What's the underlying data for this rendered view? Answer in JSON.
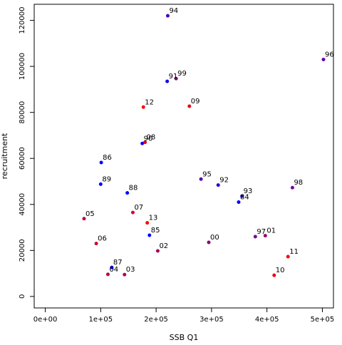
{
  "chart_data": {
    "type": "scatter",
    "xlabel": "SSB Q1",
    "ylabel": "recruitment",
    "xlim": [
      -20000,
      520000
    ],
    "ylim": [
      -5000,
      127000
    ],
    "x_ticks": [
      0,
      100000,
      200000,
      300000,
      400000,
      500000
    ],
    "x_tick_labels": [
      "0e+00",
      "1e+05",
      "2e+05",
      "3e+05",
      "4e+05",
      "5e+05"
    ],
    "y_ticks": [
      0,
      20000,
      40000,
      60000,
      80000,
      100000,
      120000
    ],
    "y_tick_labels": [
      "0",
      "20000",
      "40000",
      "60000",
      "80000",
      "100000",
      "120000"
    ],
    "point_colors": {
      "blue": "#0000ff",
      "purple": "#6600cc",
      "red": "#ff0000",
      "darkred": "#cc0033"
    },
    "points": [
      {
        "label": "85",
        "x": 188000,
        "y": 26600,
        "color": "#0000ff"
      },
      {
        "label": "86",
        "x": 101000,
        "y": 58200,
        "color": "#0000ff"
      },
      {
        "label": "87",
        "x": 120000,
        "y": 12600,
        "color": "#0000ff"
      },
      {
        "label": "88",
        "x": 148000,
        "y": 45000,
        "color": "#0000ff"
      },
      {
        "label": "89",
        "x": 100000,
        "y": 48800,
        "color": "#0000ff"
      },
      {
        "label": "90",
        "x": 175000,
        "y": 66500,
        "color": "#1100ee"
      },
      {
        "label": "91",
        "x": 220000,
        "y": 93500,
        "color": "#1100ee"
      },
      {
        "label": "92",
        "x": 312000,
        "y": 48400,
        "color": "#2200dd"
      },
      {
        "label": "93",
        "x": 355000,
        "y": 43600,
        "color": "#3300cc"
      },
      {
        "label": "84",
        "x": 349000,
        "y": 41000,
        "color": "#0000ff"
      },
      {
        "label": "94",
        "x": 221000,
        "y": 122000,
        "color": "#4400bb"
      },
      {
        "label": "95",
        "x": 281000,
        "y": 51000,
        "color": "#5500aa"
      },
      {
        "label": "96",
        "x": 502000,
        "y": 103000,
        "color": "#6600aa"
      },
      {
        "label": "97",
        "x": 379000,
        "y": 26000,
        "color": "#770099"
      },
      {
        "label": "98",
        "x": 446000,
        "y": 47300,
        "color": "#770099"
      },
      {
        "label": "99",
        "x": 236000,
        "y": 94700,
        "color": "#880088"
      },
      {
        "label": "00",
        "x": 295000,
        "y": 23500,
        "color": "#880077"
      },
      {
        "label": "01",
        "x": 397000,
        "y": 26400,
        "color": "#990066"
      },
      {
        "label": "02",
        "x": 203000,
        "y": 19800,
        "color": "#aa0055"
      },
      {
        "label": "03",
        "x": 143000,
        "y": 9500,
        "color": "#aa0055"
      },
      {
        "label": "04",
        "x": 113000,
        "y": 9600,
        "color": "#bb0044"
      },
      {
        "label": "05",
        "x": 70000,
        "y": 33800,
        "color": "#bb0044"
      },
      {
        "label": "06",
        "x": 92000,
        "y": 23000,
        "color": "#cc0033"
      },
      {
        "label": "07",
        "x": 158000,
        "y": 36500,
        "color": "#dd0033"
      },
      {
        "label": "08",
        "x": 180000,
        "y": 67000,
        "color": "#dd0022"
      },
      {
        "label": "09",
        "x": 260000,
        "y": 82700,
        "color": "#ee0011"
      },
      {
        "label": "10",
        "x": 413000,
        "y": 9200,
        "color": "#ee0011"
      },
      {
        "label": "11",
        "x": 438000,
        "y": 17300,
        "color": "#ff0000"
      },
      {
        "label": "12",
        "x": 177000,
        "y": 82300,
        "color": "#ff0000"
      },
      {
        "label": "13",
        "x": 184000,
        "y": 32000,
        "color": "#ff0000"
      }
    ]
  }
}
